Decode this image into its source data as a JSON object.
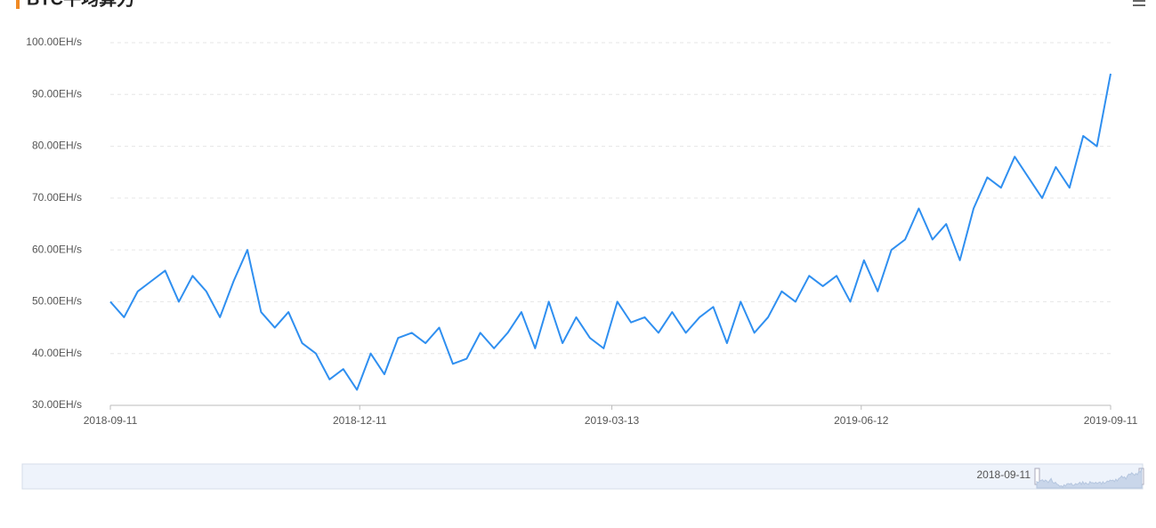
{
  "chart_data": {
    "type": "line",
    "title": "BTC平均算力",
    "x": [
      "2018-09-11",
      "2018-09-16",
      "2018-09-21",
      "2018-09-26",
      "2018-10-01",
      "2018-10-06",
      "2018-10-11",
      "2018-10-16",
      "2018-10-21",
      "2018-10-26",
      "2018-10-31",
      "2018-11-05",
      "2018-11-10",
      "2018-11-15",
      "2018-11-20",
      "2018-11-25",
      "2018-11-30",
      "2018-12-05",
      "2018-12-10",
      "2018-12-15",
      "2018-12-20",
      "2018-12-25",
      "2018-12-30",
      "2019-01-04",
      "2019-01-09",
      "2019-01-14",
      "2019-01-19",
      "2019-01-24",
      "2019-01-29",
      "2019-02-03",
      "2019-02-08",
      "2019-02-13",
      "2019-02-18",
      "2019-02-23",
      "2019-02-28",
      "2019-03-05",
      "2019-03-10",
      "2019-03-15",
      "2019-03-20",
      "2019-03-25",
      "2019-03-30",
      "2019-04-04",
      "2019-04-09",
      "2019-04-14",
      "2019-04-19",
      "2019-04-24",
      "2019-04-29",
      "2019-05-04",
      "2019-05-09",
      "2019-05-14",
      "2019-05-19",
      "2019-05-24",
      "2019-05-29",
      "2019-06-03",
      "2019-06-08",
      "2019-06-13",
      "2019-06-18",
      "2019-06-23",
      "2019-06-28",
      "2019-07-03",
      "2019-07-08",
      "2019-07-13",
      "2019-07-18",
      "2019-07-23",
      "2019-07-28",
      "2019-08-02",
      "2019-08-07",
      "2019-08-12",
      "2019-08-17",
      "2019-08-22",
      "2019-08-27",
      "2019-09-01",
      "2019-09-06",
      "2019-09-11"
    ],
    "values": [
      50,
      47,
      52,
      54,
      56,
      50,
      55,
      52,
      47,
      54,
      60,
      48,
      45,
      48,
      42,
      40,
      35,
      37,
      33,
      40,
      36,
      43,
      44,
      42,
      45,
      38,
      39,
      44,
      41,
      44,
      48,
      41,
      50,
      42,
      47,
      43,
      41,
      50,
      46,
      47,
      44,
      48,
      44,
      47,
      49,
      42,
      50,
      44,
      47,
      52,
      50,
      55,
      53,
      55,
      50,
      58,
      52,
      60,
      62,
      68,
      62,
      65,
      58,
      68,
      74,
      72,
      78,
      74,
      70,
      76,
      72,
      82,
      80,
      94
    ],
    "color": "#2f8ff0",
    "xlim": [
      "2018-09-11",
      "2019-09-11"
    ],
    "xticks": [
      "2018-09-11",
      "2018-12-11",
      "2019-03-13",
      "2019-06-12",
      "2019-09-11"
    ],
    "ylim": [
      30,
      100
    ],
    "yticks": [
      {
        "value": 30,
        "label": "30.00EH/s"
      },
      {
        "value": 40,
        "label": "40.00EH/s"
      },
      {
        "value": 50,
        "label": "50.00EH/s"
      },
      {
        "value": 60,
        "label": "60.00EH/s"
      },
      {
        "value": 70,
        "label": "70.00EH/s"
      },
      {
        "value": 80,
        "label": "80.00EH/s"
      },
      {
        "value": 90,
        "label": "90.00EH/s"
      },
      {
        "value": 100,
        "label": "100.00EH/s"
      }
    ],
    "grid": true
  }
}
